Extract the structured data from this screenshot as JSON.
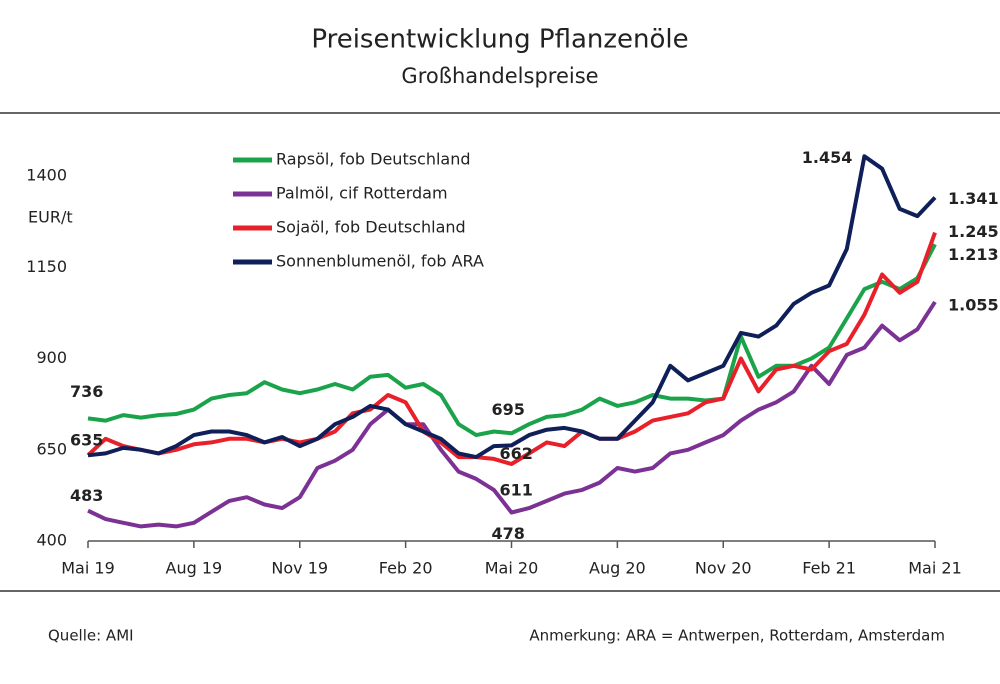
{
  "chart_data": {
    "type": "line",
    "title": "Preisentwicklung Pflanzenöle",
    "subtitle": "Großhandelspreise",
    "y_label": "EUR/t",
    "source": "Quelle: AMI",
    "note": "Anmerkung: ARA = Antwerpen, Rotterdam, Amsterdam",
    "x": [
      0,
      0.5,
      1,
      1.5,
      2,
      2.5,
      3,
      3.5,
      4,
      4.5,
      5,
      5.5,
      6,
      6.5,
      7,
      7.5,
      8,
      8.5,
      9,
      9.5,
      10,
      10.5,
      11,
      11.5,
      12,
      12.5,
      13,
      13.5,
      14,
      14.5,
      15,
      15.5,
      16,
      16.5,
      17,
      17.5,
      18,
      18.5,
      19,
      19.5,
      20,
      20.5,
      21,
      21.5,
      22,
      22.5,
      23,
      23.5,
      24
    ],
    "xlim": [
      0,
      24
    ],
    "xticks": [
      {
        "value": 0,
        "label": "Mai 19"
      },
      {
        "value": 3,
        "label": "Aug 19"
      },
      {
        "value": 6,
        "label": "Nov 19"
      },
      {
        "value": 9,
        "label": "Feb 20"
      },
      {
        "value": 12,
        "label": "Mai 20"
      },
      {
        "value": 15,
        "label": "Aug 20"
      },
      {
        "value": 18,
        "label": "Nov 20"
      },
      {
        "value": 21,
        "label": "Feb 21"
      },
      {
        "value": 24,
        "label": "Mai 21"
      }
    ],
    "ylim": [
      400,
      1500
    ],
    "yticks": [
      400,
      650,
      900,
      1150,
      1400
    ],
    "legend": "top-left",
    "series": [
      {
        "name": "Rapsöl, fob Deutschland",
        "color": "#1aa34a",
        "values": [
          736,
          730,
          745,
          738,
          745,
          748,
          760,
          790,
          800,
          805,
          835,
          815,
          805,
          815,
          830,
          815,
          850,
          855,
          820,
          830,
          800,
          720,
          690,
          700,
          695,
          720,
          740,
          745,
          760,
          790,
          770,
          780,
          800,
          790,
          790,
          785,
          790,
          960,
          850,
          880,
          880,
          900,
          930,
          1010,
          1090,
          1110,
          1090,
          1120,
          1213
        ]
      },
      {
        "name": "Palmöl, cif Rotterdam",
        "color": "#7b3294",
        "values": [
          483,
          460,
          450,
          440,
          445,
          440,
          450,
          480,
          510,
          520,
          500,
          490,
          520,
          600,
          620,
          650,
          720,
          760,
          720,
          720,
          650,
          590,
          570,
          540,
          478,
          490,
          510,
          530,
          540,
          560,
          600,
          590,
          600,
          640,
          650,
          670,
          690,
          730,
          760,
          780,
          810,
          880,
          830,
          910,
          930,
          990,
          950,
          980,
          1055
        ]
      },
      {
        "name": "Sojaöl, fob Deutschland",
        "color": "#e8202a",
        "values": [
          635,
          680,
          660,
          650,
          640,
          650,
          665,
          670,
          680,
          680,
          670,
          680,
          670,
          680,
          700,
          750,
          760,
          800,
          780,
          700,
          670,
          630,
          630,
          625,
          611,
          640,
          670,
          660,
          700,
          680,
          680,
          700,
          730,
          740,
          750,
          780,
          790,
          900,
          810,
          870,
          880,
          870,
          920,
          940,
          1020,
          1130,
          1080,
          1110,
          1245
        ]
      },
      {
        "name": "Sonnenblumenöl, fob ARA",
        "color": "#0f1f5a",
        "values": [
          635,
          640,
          655,
          650,
          640,
          660,
          690,
          700,
          700,
          690,
          670,
          685,
          660,
          680,
          720,
          740,
          770,
          760,
          720,
          700,
          680,
          640,
          630,
          660,
          662,
          690,
          705,
          710,
          700,
          680,
          680,
          730,
          780,
          880,
          840,
          860,
          880,
          970,
          960,
          990,
          1050,
          1080,
          1100,
          1200,
          1454,
          1420,
          1310,
          1290,
          1341
        ]
      }
    ],
    "annotations": [
      {
        "x": 0,
        "value": 736,
        "label": "736",
        "color": "#1aa34a"
      },
      {
        "x": 0,
        "value": 635,
        "label": "635",
        "color": "#0f1f5a"
      },
      {
        "x": 0,
        "value": 483,
        "label": "483",
        "color": "#7b3294"
      },
      {
        "x": 12,
        "value": 695,
        "label": "695",
        "color": "#1aa34a"
      },
      {
        "x": 12,
        "value": 662,
        "label": "662",
        "color": "#0f1f5a"
      },
      {
        "x": 12,
        "value": 611,
        "label": "611",
        "color": "#e8202a"
      },
      {
        "x": 12,
        "value": 478,
        "label": "478",
        "color": "#7b3294"
      },
      {
        "x": 22,
        "value": 1454,
        "label": "1.454",
        "color": "#0f1f5a"
      },
      {
        "x": 24,
        "value": 1341,
        "label": "1.341",
        "color": "#0f1f5a"
      },
      {
        "x": 24,
        "value": 1245,
        "label": "1.245",
        "color": "#e8202a"
      },
      {
        "x": 24,
        "value": 1213,
        "label": "1.213",
        "color": "#1aa34a"
      },
      {
        "x": 24,
        "value": 1055,
        "label": "1.055",
        "color": "#7b3294"
      }
    ]
  }
}
